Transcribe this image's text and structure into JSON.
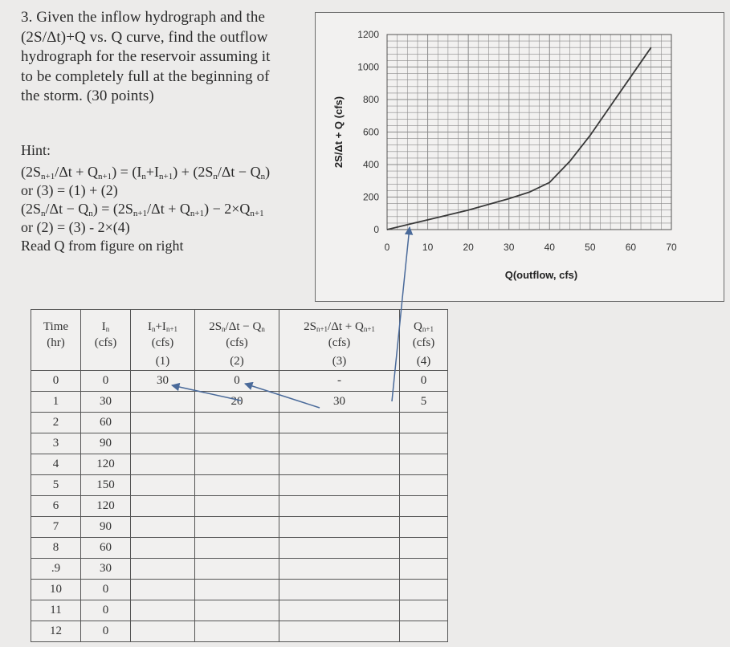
{
  "problem": {
    "lines": [
      "3. Given the inflow hydrograph and the",
      "(2S/Δt)+Q vs. Q curve, find the outflow",
      "hydrograph for the reservoir assuming it",
      "to be completely full at the beginning of",
      "the storm. (30 points)"
    ]
  },
  "hint": {
    "title": "Hint:",
    "line4": "or (3) = (1) + (2)",
    "line6": "or (2) = (3) - 2×(4)",
    "line7": "Read Q from figure on right"
  },
  "chart_data": {
    "type": "line",
    "xlabel": "Q(outflow, cfs)",
    "ylabel": "2S/Δt + Q (cfs)",
    "xlim": [
      0,
      70
    ],
    "ylim": [
      0,
      1200
    ],
    "xticks": [
      0,
      10,
      20,
      30,
      40,
      50,
      60,
      70
    ],
    "yticks": [
      0,
      200,
      400,
      600,
      800,
      1000,
      1200
    ],
    "x": [
      0,
      5,
      10,
      20,
      30,
      35,
      40,
      45,
      50,
      55,
      60,
      65
    ],
    "y": [
      0,
      30,
      60,
      120,
      190,
      230,
      290,
      420,
      580,
      760,
      940,
      1120
    ],
    "grid": true,
    "colors": {
      "curve": "#3a3a3a",
      "grid": "#8a8a8a",
      "arrow": "#4a6a9a"
    }
  },
  "table": {
    "headers": {
      "time": [
        "Time",
        "(hr)",
        ""
      ],
      "in": [
        "(cfs)",
        ""
      ],
      "sum": [
        "(cfs)",
        "(1)"
      ],
      "s2": [
        "(cfs)",
        "(2)"
      ],
      "s3": [
        "(cfs)",
        "(3)"
      ],
      "q": [
        "(cfs)",
        "(4)"
      ]
    },
    "rows": [
      [
        "0",
        "0",
        "30",
        "0",
        "-",
        "0"
      ],
      [
        "1",
        "30",
        "",
        "20",
        "30",
        "5"
      ],
      [
        "2",
        "60",
        "",
        "",
        "",
        ""
      ],
      [
        "3",
        "90",
        "",
        "",
        "",
        ""
      ],
      [
        "4",
        "120",
        "",
        "",
        "",
        ""
      ],
      [
        "5",
        "150",
        "",
        "",
        "",
        ""
      ],
      [
        "6",
        "120",
        "",
        "",
        "",
        ""
      ],
      [
        "7",
        "90",
        "",
        "",
        "",
        ""
      ],
      [
        "8",
        "60",
        "",
        "",
        "",
        ""
      ],
      [
        ".9",
        "30",
        "",
        "",
        "",
        ""
      ],
      [
        "10",
        "0",
        "",
        "",
        "",
        ""
      ],
      [
        "11",
        "0",
        "",
        "",
        "",
        ""
      ],
      [
        "12",
        "0",
        "",
        "",
        "",
        ""
      ]
    ]
  }
}
